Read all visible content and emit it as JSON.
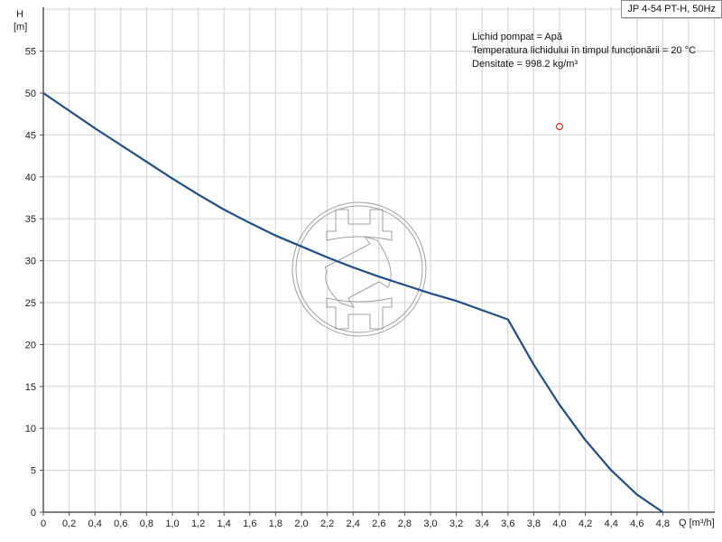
{
  "chart_data": {
    "type": "line",
    "title": "JP 4-54 PT-H, 50Hz",
    "xlabel": "Q [m³/h]",
    "ylabel_top": "H",
    "ylabel_unit": "[m]",
    "xlim": [
      0,
      4.8
    ],
    "ylim": [
      0,
      58
    ],
    "grid": true,
    "x_ticks": [
      "0",
      "0,2",
      "0,4",
      "0,6",
      "0,8",
      "1,0",
      "1,2",
      "1,4",
      "1,6",
      "1,8",
      "2,0",
      "2,2",
      "2,4",
      "2,6",
      "2,8",
      "3,0",
      "3,2",
      "3,4",
      "3,6",
      "3,8",
      "4,0",
      "4,2",
      "4,4",
      "4,6",
      "4,8"
    ],
    "y_ticks": [
      "0",
      "5",
      "10",
      "15",
      "20",
      "25",
      "30",
      "35",
      "40",
      "45",
      "50",
      "55"
    ],
    "series": [
      {
        "name": "JP 4-54 PT-H, 50Hz",
        "color": "#1f4e8c",
        "x": [
          0,
          0.2,
          0.4,
          0.6,
          0.8,
          1.0,
          1.2,
          1.4,
          1.6,
          1.8,
          2.0,
          2.2,
          2.4,
          2.6,
          2.8,
          3.0,
          3.2,
          3.4,
          3.6,
          3.8,
          4.0,
          4.2,
          4.4,
          4.6,
          4.8
        ],
        "values": [
          50,
          47.9,
          45.8,
          43.8,
          41.8,
          39.8,
          37.9,
          36.1,
          34.5,
          33.0,
          31.7,
          30.4,
          29.2,
          28.1,
          27.1,
          26.1,
          25.2,
          24.1,
          23.0,
          17.6,
          12.8,
          8.6,
          5.0,
          2.1,
          0
        ]
      }
    ],
    "markers": [
      {
        "name": "operating-point",
        "x": 4.0,
        "y": 46,
        "color": "#e03030",
        "shape": "open-circle"
      }
    ],
    "annotations": [
      "Lichid pompat = Apă",
      "Temperatura lichidului în timpul funcționării = 20 °C",
      "Densitate = 998.2 kg/m³"
    ],
    "legend_position": "top-right"
  },
  "legend": {
    "label": "JP 4-54 PT-H, 50Hz"
  },
  "info": {
    "line1": "Lichid pompat = Apă",
    "line2": "Temperatura lichidului în timpul funcționării = 20 °C",
    "line3": "Densitate = 998.2 kg/m³"
  },
  "axes": {
    "y_title": "H",
    "y_unit": "[m]",
    "x_title": "Q [m³/h]"
  },
  "colors": {
    "curve": "#1f4e8c",
    "grid": "#d9d9d9",
    "axis": "#555555",
    "marker": "#e03030",
    "watermark": "#9a9a9a"
  }
}
